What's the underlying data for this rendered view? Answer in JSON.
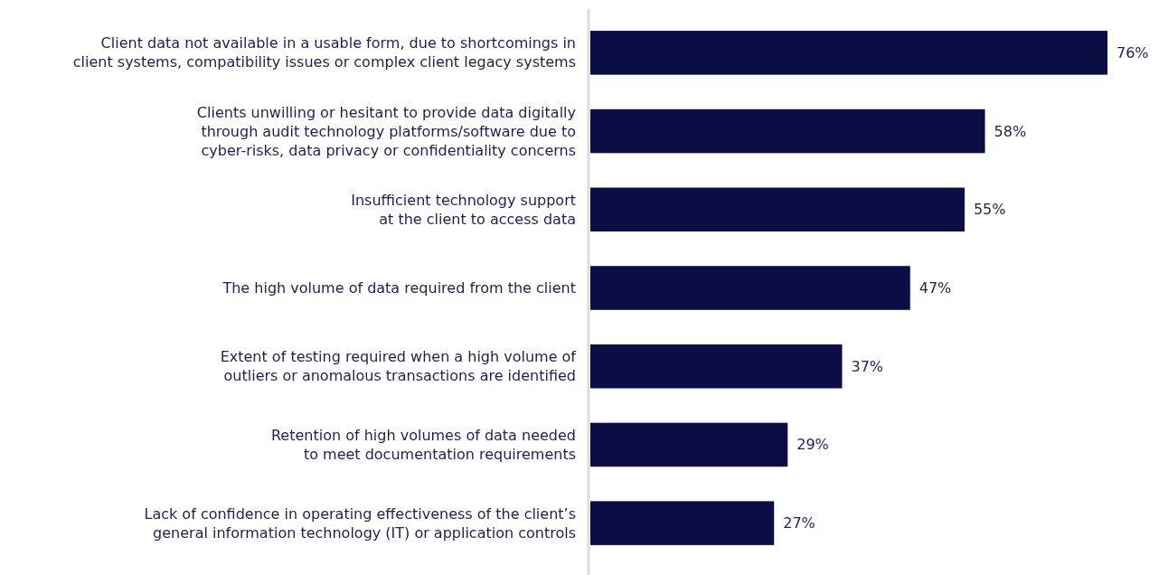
{
  "chart_data": {
    "type": "bar",
    "orientation": "horizontal",
    "categories": [
      "Client data not available in a usable form, due to shortcomings in\nclient systems, compatibility issues or complex client legacy systems",
      "Clients unwilling or hesitant to provide data digitally\nthrough audit technology platforms/software due to\ncyber-risks, data privacy or confidentiality concerns",
      "Insufficient technology support\nat the client to access data",
      "The high volume of data required from the client",
      "Extent of testing required when a high volume of\noutliers or anomalous transactions are identified",
      "Retention of high volumes of data needed\nto meet documentation requirements",
      "Lack of confidence in operating effectiveness of the client’s\ngeneral information technology (IT) or application controls"
    ],
    "values": [
      76,
      58,
      55,
      47,
      37,
      29,
      27
    ],
    "value_labels": [
      "76%",
      "58%",
      "55%",
      "47%",
      "37%",
      "29%",
      "27%"
    ],
    "color": "#0b0d45"
  }
}
